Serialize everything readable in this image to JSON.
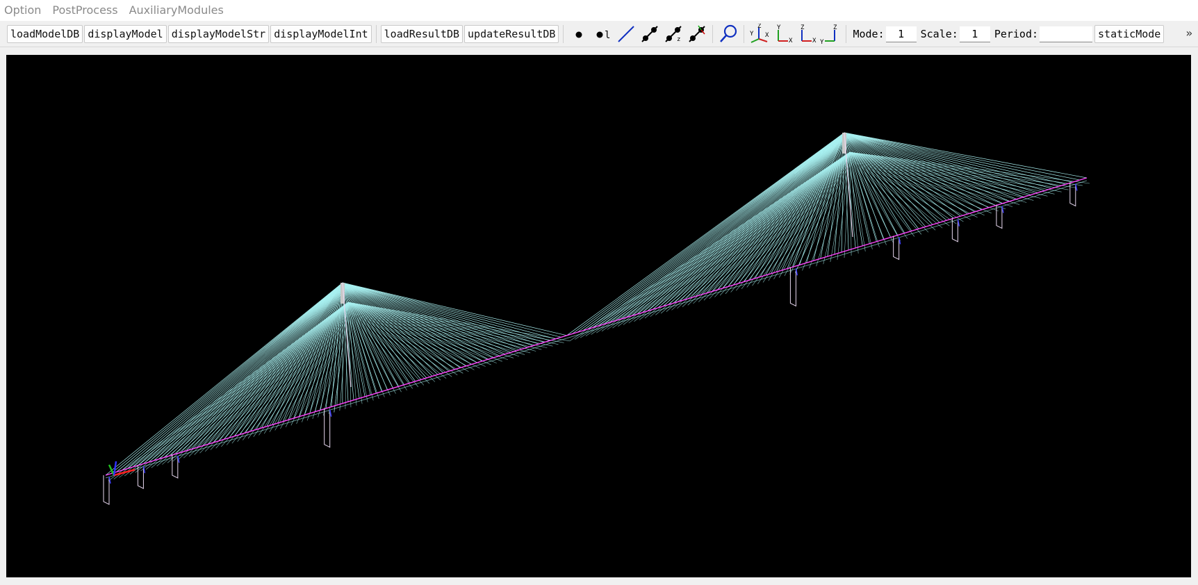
{
  "menu": {
    "items": [
      {
        "label": "Option"
      },
      {
        "label": "PostProcess"
      },
      {
        "label": "AuxiliaryModules"
      }
    ]
  },
  "toolbar": {
    "load_model_db": "loadModelDB",
    "display_model": "displayModel",
    "display_model_str": "displayModelStr",
    "display_model_int": "displayModelInt",
    "load_result_db": "loadResultDB",
    "update_result_db": "updateResultDB",
    "node_icon_label": "●",
    "node_id_label": "●l",
    "mode_label": "Mode:",
    "mode_value": "1",
    "scale_label": "Scale:",
    "scale_value": "1",
    "period_label": "Period:",
    "period_value": "",
    "static_mode": "staticMode",
    "overflow": "»"
  },
  "view": {
    "background": "#000000",
    "cable_color": "#a8f0f0",
    "deck_color": "#ff44ff",
    "pier_color": "#e8d8f0",
    "tower_color": "#c8c8c8"
  }
}
